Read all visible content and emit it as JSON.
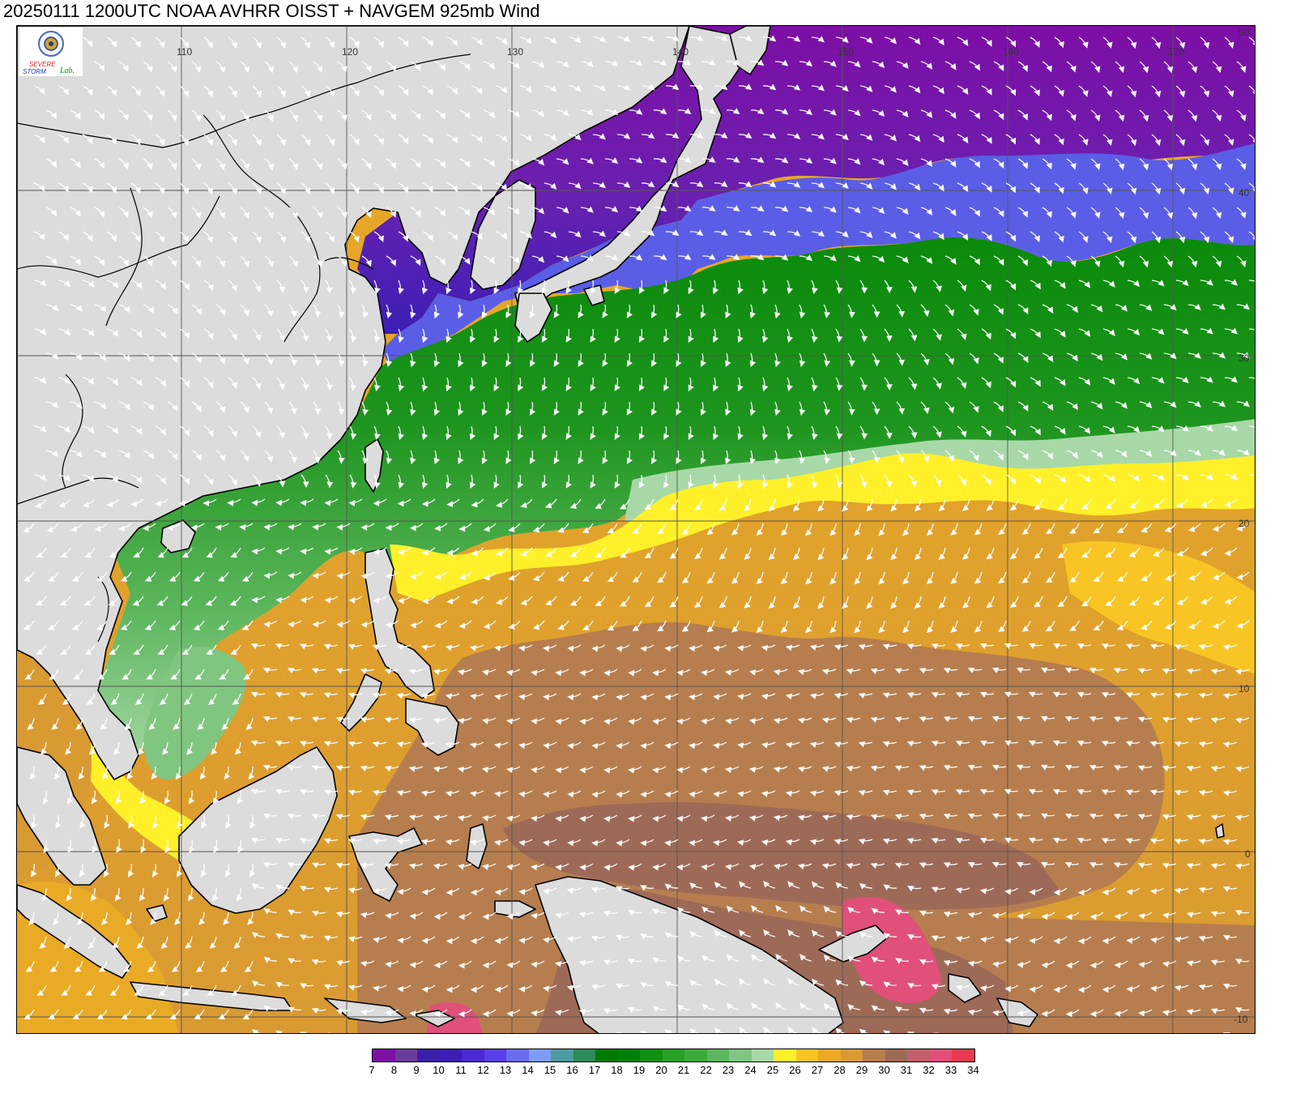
{
  "title": "20250111 1200UTC NOAA AVHRR OISST + NAVGEM 925mb Wind",
  "logo": {
    "text_top": "SEVERE",
    "text_bottom": "STORM",
    "text_lab": "Lab.",
    "icon": "severe-storm-lab-logo"
  },
  "map": {
    "lon_labels": [
      "110",
      "120",
      "130",
      "140",
      "150",
      "160",
      "170"
    ],
    "lat_labels": [
      "50",
      "40",
      "30",
      "20",
      "10",
      "0",
      "-10"
    ],
    "land_color": "#dcdcdc"
  },
  "colorbar": {
    "levels": [
      "7",
      "8",
      "9",
      "10",
      "11",
      "12",
      "13",
      "14",
      "15",
      "16",
      "17",
      "18",
      "19",
      "20",
      "21",
      "22",
      "23",
      "24",
      "25",
      "26",
      "27",
      "28",
      "29",
      "30",
      "31",
      "32",
      "33",
      "34"
    ],
    "colors": [
      "#7d0fa5",
      "#6a3d9a",
      "#3a1fa8",
      "#3b1fb5",
      "#4a2bd1",
      "#5a3fe6",
      "#6b6cf2",
      "#7d9cf6",
      "#4f9aa0",
      "#2f8a5a",
      "#007a00",
      "#00800a",
      "#109010",
      "#27a027",
      "#3aab3a",
      "#5db65d",
      "#80c680",
      "#a8d8a8",
      "#fff02a",
      "#f8c524",
      "#e9aa25",
      "#d99a32",
      "#b67e4e",
      "#9e6a58",
      "#c0606a",
      "#e0507a",
      "#e83a50"
    ]
  }
}
